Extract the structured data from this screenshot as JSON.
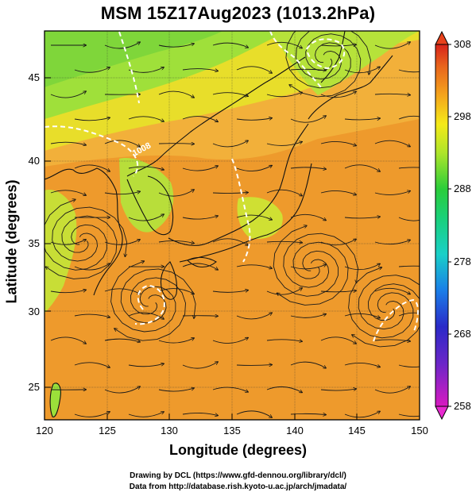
{
  "title": "MSM 15Z17Aug2023 (1013.2hPa)",
  "x_axis": {
    "label": "Longitude (degrees)",
    "ticks": [
      "120",
      "125",
      "130",
      "135",
      "140",
      "145",
      "150"
    ]
  },
  "y_axis": {
    "label": "Latitude  (degrees)",
    "ticks": [
      "25",
      "30",
      "35",
      "40",
      "45"
    ]
  },
  "colorbar": {
    "ticks": [
      "258",
      "268",
      "278",
      "288",
      "298",
      "308"
    ],
    "colors": [
      "#d81ac0",
      "#2a2ac8",
      "#1a9ae8",
      "#1ad0a0",
      "#2acd3a",
      "#aee52a",
      "#f5ea18",
      "#f4a41c",
      "#e8641c",
      "#d8231a"
    ]
  },
  "contour_label": "1008",
  "footer": {
    "line1": "Drawing by DCL (https://www.gfd-dennou.org/library/dcl/)",
    "line2": "Data from http://database.rish.kyoto-u.ac.jp/arch/jmadata/"
  },
  "map": {
    "lon_range": [
      120,
      150
    ],
    "lat_range": [
      22.4,
      47.6
    ],
    "variable_range": [
      258,
      308
    ],
    "temperature_zones": [
      {
        "region": "north-west interior",
        "value": 291
      },
      {
        "region": "Sea of Japan north",
        "value": 294
      },
      {
        "region": "Sea of Japan south / Korea",
        "value": 297
      },
      {
        "region": "East China Sea / Pacific",
        "value": 301
      },
      {
        "region": "Hokkaido / Okhotsk",
        "value": 293
      }
    ],
    "circulation_centers": [
      {
        "lon": 128.5,
        "lat": 30.0,
        "type": "cyclonic"
      },
      {
        "lon": 141.5,
        "lat": 32.3,
        "type": "cyclonic"
      },
      {
        "lon": 147.5,
        "lat": 29.6,
        "type": "cyclonic"
      },
      {
        "lon": 142.5,
        "lat": 45.8,
        "type": "cyclonic"
      },
      {
        "lon": 123.0,
        "lat": 34.0,
        "type": "cyclonic"
      }
    ]
  }
}
